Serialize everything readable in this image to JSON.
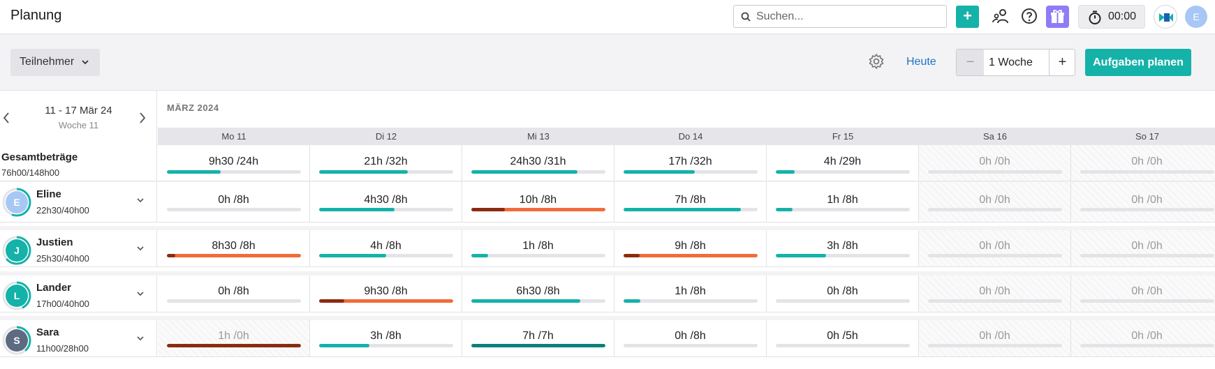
{
  "header": {
    "title": "Planung",
    "search_placeholder": "Suchen...",
    "timer": "00:00",
    "user_initial": "E"
  },
  "toolbar": {
    "filter_label": "Teilnehmer",
    "today_label": "Heute",
    "period_value": "1 Woche",
    "minus_label": "−",
    "plus_label": "+",
    "plan_button": "Aufgaben planen"
  },
  "calendar": {
    "week_range": "11 - 17 Mär 24",
    "week_label": "Woche 11",
    "month_label": "MÄRZ 2024",
    "days": [
      "Mo 11",
      "Di 12",
      "Mi 13",
      "Do 14",
      "Fr 15",
      "Sa 16",
      "So 17"
    ]
  },
  "totals": {
    "title": "Gesamtbeträge",
    "hours": "76h00/148h00",
    "cells": [
      {
        "label": "9h30 /24h",
        "fill": 0.4,
        "status": "normal"
      },
      {
        "label": "21h /32h",
        "fill": 0.66,
        "status": "normal"
      },
      {
        "label": "24h30 /31h",
        "fill": 0.79,
        "status": "normal"
      },
      {
        "label": "17h /32h",
        "fill": 0.53,
        "status": "normal"
      },
      {
        "label": "4h /29h",
        "fill": 0.14,
        "status": "normal"
      },
      {
        "label": "0h /0h",
        "fill": 0,
        "status": "weekend"
      },
      {
        "label": "0h /0h",
        "fill": 0,
        "status": "weekend"
      }
    ]
  },
  "people": [
    {
      "name": "Eline",
      "initial": "E",
      "hours": "22h30/40h00",
      "avatar_color": "#a7c7f5",
      "ring": 0.56,
      "cells": [
        {
          "label": "0h /8h",
          "fill": 0,
          "status": "normal"
        },
        {
          "label": "4h30 /8h",
          "fill": 0.56,
          "status": "normal"
        },
        {
          "label": "10h /8h",
          "fill": 1,
          "status": "over",
          "over_part": 0.25
        },
        {
          "label": "7h /8h",
          "fill": 0.875,
          "status": "normal"
        },
        {
          "label": "1h /8h",
          "fill": 0.125,
          "status": "normal"
        },
        {
          "label": "0h /0h",
          "fill": 0,
          "status": "weekend"
        },
        {
          "label": "0h /0h",
          "fill": 0,
          "status": "weekend"
        }
      ]
    },
    {
      "name": "Justien",
      "initial": "J",
      "hours": "25h30/40h00",
      "avatar_color": "#14b2a9",
      "ring": 0.64,
      "cells": [
        {
          "label": "8h30 /8h",
          "fill": 1,
          "status": "over",
          "over_part": 0.06
        },
        {
          "label": "4h /8h",
          "fill": 0.5,
          "status": "normal"
        },
        {
          "label": "1h /8h",
          "fill": 0.125,
          "status": "normal"
        },
        {
          "label": "9h /8h",
          "fill": 1,
          "status": "over",
          "over_part": 0.12
        },
        {
          "label": "3h /8h",
          "fill": 0.375,
          "status": "normal"
        },
        {
          "label": "0h /0h",
          "fill": 0,
          "status": "weekend"
        },
        {
          "label": "0h /0h",
          "fill": 0,
          "status": "weekend"
        }
      ]
    },
    {
      "name": "Lander",
      "initial": "L",
      "hours": "17h00/40h00",
      "avatar_color": "#14b2a9",
      "ring": 0.43,
      "cells": [
        {
          "label": "0h /8h",
          "fill": 0,
          "status": "normal"
        },
        {
          "label": "9h30 /8h",
          "fill": 1,
          "status": "over",
          "over_part": 0.19
        },
        {
          "label": "6h30 /8h",
          "fill": 0.81,
          "status": "normal"
        },
        {
          "label": "1h /8h",
          "fill": 0.125,
          "status": "normal"
        },
        {
          "label": "0h /8h",
          "fill": 0,
          "status": "normal"
        },
        {
          "label": "0h /0h",
          "fill": 0,
          "status": "weekend"
        },
        {
          "label": "0h /0h",
          "fill": 0,
          "status": "weekend"
        }
      ]
    },
    {
      "name": "Sara",
      "initial": "S",
      "hours": "11h00/28h00",
      "avatar_color": "#5d6b82",
      "ring": 0.39,
      "cells": [
        {
          "label": "1h /0h",
          "fill": 1,
          "status": "overweekend"
        },
        {
          "label": "3h /8h",
          "fill": 0.375,
          "status": "normal"
        },
        {
          "label": "7h /7h",
          "fill": 1,
          "status": "full"
        },
        {
          "label": "0h /8h",
          "fill": 0,
          "status": "normal"
        },
        {
          "label": "0h /5h",
          "fill": 0,
          "status": "normal"
        },
        {
          "label": "0h /0h",
          "fill": 0,
          "status": "weekend"
        },
        {
          "label": "0h /0h",
          "fill": 0,
          "status": "weekend"
        }
      ]
    }
  ],
  "colors": {
    "accent": "#14b2a9",
    "full": "#0e7f7a",
    "over": "#f26b3a",
    "over_dark": "#8c2a10",
    "link": "#1a73c9"
  }
}
